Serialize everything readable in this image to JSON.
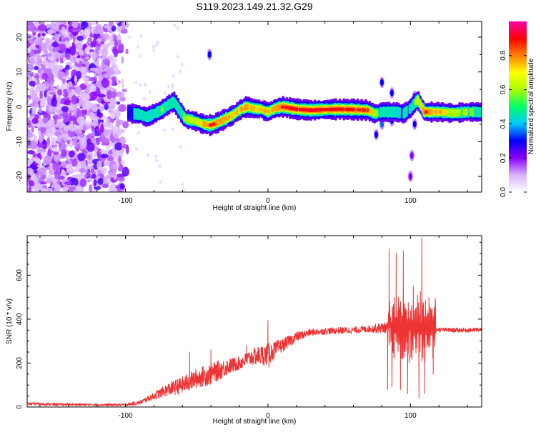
{
  "title": "S119.2023.149.21.32.G29",
  "chart_data": [
    {
      "type": "heatmap",
      "xlabel": "Height of straight line (km)",
      "ylabel": "Frequency (Hz)",
      "xlim": [
        -169,
        150
      ],
      "ylim": [
        -24.5,
        24.5
      ],
      "x_ticks": [
        -100,
        0,
        100
      ],
      "y_ticks": [
        -20,
        -10,
        0,
        10,
        20
      ],
      "colorbar": {
        "label": "Normalized spectral amplitude",
        "range": [
          0,
          1
        ],
        "ticks": [
          0.0,
          0.2,
          0.4,
          0.6,
          0.8
        ],
        "colors": [
          "#ffffff",
          "#d9b3ff",
          "#8a00ff",
          "#0000ff",
          "#00c8ff",
          "#00ff66",
          "#aaff00",
          "#ffff00",
          "#ff8000",
          "#ff0000",
          "#ff00aa"
        ]
      },
      "noise_region_x": [
        -169,
        -98
      ],
      "ridge": [
        [
          -98,
          -1.8,
          0.35
        ],
        [
          -90,
          -2.2,
          0.5
        ],
        [
          -85,
          -3.0,
          0.45
        ],
        [
          -80,
          -2.0,
          0.45
        ],
        [
          -75,
          -1.0,
          0.55
        ],
        [
          -70,
          0.5,
          0.5
        ],
        [
          -66,
          1.5,
          0.5
        ],
        [
          -62,
          -1.0,
          0.45
        ],
        [
          -58,
          -3.5,
          0.55
        ],
        [
          -52,
          -4.0,
          0.6
        ],
        [
          -45,
          -5.0,
          0.75
        ],
        [
          -40,
          -5.3,
          0.85
        ],
        [
          -35,
          -4.5,
          0.8
        ],
        [
          -30,
          -3.5,
          0.8
        ],
        [
          -25,
          -2.5,
          0.75
        ],
        [
          -20,
          -1.0,
          0.7
        ],
        [
          -15,
          0.0,
          0.85
        ],
        [
          -10,
          -0.5,
          0.7
        ],
        [
          -5,
          -0.7,
          0.75
        ],
        [
          0,
          -1.5,
          0.7
        ],
        [
          5,
          -0.5,
          0.8
        ],
        [
          10,
          0.0,
          0.85
        ],
        [
          20,
          -0.7,
          0.9
        ],
        [
          30,
          -1.0,
          0.95
        ],
        [
          40,
          -0.8,
          0.9
        ],
        [
          50,
          -0.7,
          0.9
        ],
        [
          60,
          -0.8,
          0.9
        ],
        [
          70,
          -1.0,
          0.85
        ],
        [
          75,
          -2.0,
          0.6
        ],
        [
          80,
          -1.5,
          0.5
        ],
        [
          85,
          -1.5,
          0.45
        ],
        [
          90,
          -1.5,
          0.4
        ],
        [
          95,
          -2.0,
          0.4
        ],
        [
          100,
          -0.5,
          0.45
        ],
        [
          105,
          2.0,
          0.6
        ],
        [
          110,
          -1.5,
          0.85
        ],
        [
          115,
          -1.5,
          0.8
        ],
        [
          120,
          -1.5,
          0.75
        ],
        [
          130,
          -1.8,
          0.6
        ],
        [
          140,
          -1.5,
          0.55
        ],
        [
          150,
          -1.5,
          0.5
        ]
      ],
      "blobs": [
        [
          -41,
          15,
          0.3
        ],
        [
          80,
          7,
          0.3
        ],
        [
          80,
          -5,
          0.35
        ],
        [
          76,
          -8,
          0.3
        ],
        [
          87,
          4,
          0.3
        ],
        [
          87,
          -4,
          0.3
        ],
        [
          100,
          -20,
          0.2
        ],
        [
          101,
          -14,
          0.2
        ],
        [
          103,
          3,
          0.3
        ],
        [
          103,
          -5,
          0.3
        ]
      ]
    },
    {
      "type": "line",
      "xlabel": "Height of straight line (km)",
      "ylabel": "SNR (10 * v/v)",
      "xlim": [
        -169,
        150
      ],
      "ylim": [
        0,
        780
      ],
      "x_ticks": [
        -100,
        0,
        100
      ],
      "y_ticks": [
        0,
        200,
        400,
        600
      ],
      "series_color": "#ee3333",
      "envelope": [
        [
          -169,
          15
        ],
        [
          -150,
          12
        ],
        [
          -120,
          10
        ],
        [
          -100,
          10
        ],
        [
          -90,
          20
        ],
        [
          -80,
          50
        ],
        [
          -70,
          80
        ],
        [
          -60,
          100
        ],
        [
          -50,
          130
        ],
        [
          -40,
          150
        ],
        [
          -30,
          180
        ],
        [
          -20,
          200
        ],
        [
          -10,
          230
        ],
        [
          0,
          240
        ],
        [
          10,
          280
        ],
        [
          20,
          320
        ],
        [
          30,
          340
        ],
        [
          40,
          345
        ],
        [
          50,
          348
        ],
        [
          60,
          350
        ],
        [
          70,
          355
        ],
        [
          80,
          360
        ],
        [
          90,
          365
        ],
        [
          100,
          360
        ],
        [
          110,
          355
        ],
        [
          120,
          352
        ],
        [
          130,
          350
        ],
        [
          140,
          350
        ],
        [
          150,
          352
        ]
      ],
      "noise_amplitude": [
        [
          -169,
          6
        ],
        [
          -100,
          6
        ],
        [
          -85,
          12
        ],
        [
          -60,
          40
        ],
        [
          -40,
          50
        ],
        [
          -20,
          30
        ],
        [
          0,
          50
        ],
        [
          10,
          30
        ],
        [
          30,
          15
        ],
        [
          70,
          15
        ],
        [
          80,
          25
        ],
        [
          120,
          10
        ],
        [
          150,
          10
        ]
      ],
      "spikes": [
        [
          -55,
          250
        ],
        [
          -40,
          260
        ],
        [
          -15,
          280
        ],
        [
          0,
          395
        ],
        [
          0.7,
          180
        ],
        [
          84,
          80
        ],
        [
          85,
          720
        ],
        [
          87,
          90
        ],
        [
          90,
          700
        ],
        [
          93,
          80
        ],
        [
          95,
          710
        ],
        [
          98,
          60
        ],
        [
          102,
          550
        ],
        [
          106,
          40
        ],
        [
          108,
          770
        ],
        [
          110,
          60
        ],
        [
          113,
          500
        ],
        [
          116,
          150
        ]
      ]
    }
  ]
}
